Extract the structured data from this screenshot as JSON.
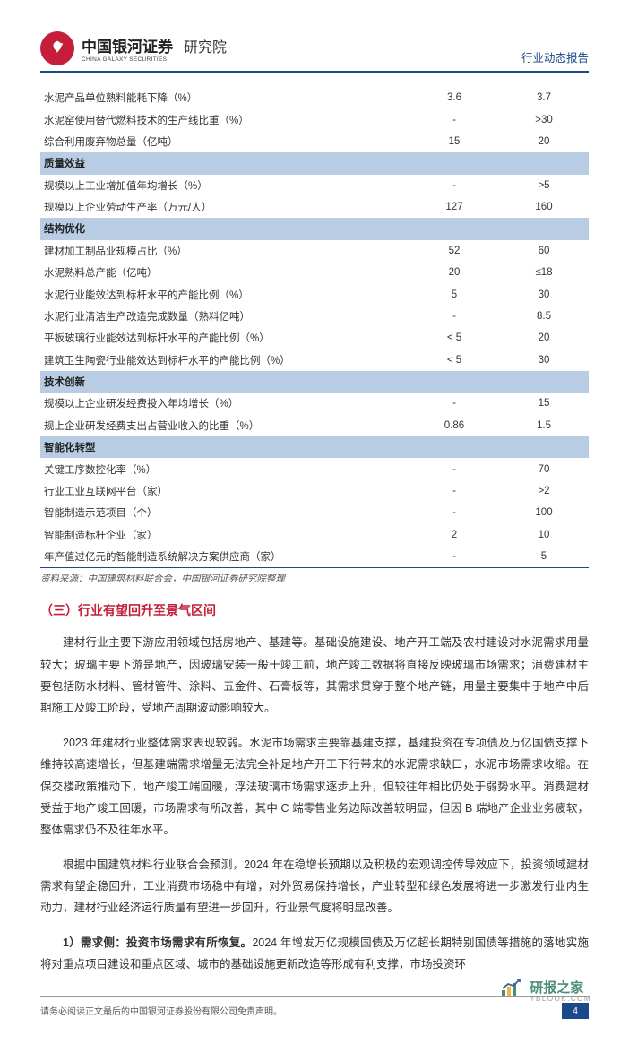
{
  "header": {
    "brand_cn": "中国银河证券",
    "brand_en": "CHINA GALAXY SECURITIES",
    "institute": "研究院",
    "report_type": "行业动态报告"
  },
  "table": {
    "sections": [
      {
        "rows": [
          {
            "label": "水泥产品单位熟料能耗下降（%）",
            "v1": "3.6",
            "v2": "3.7"
          },
          {
            "label": "水泥窑使用替代燃料技术的生产线比重（%）",
            "v1": "-",
            "v2": ">30"
          },
          {
            "label": "综合利用废弃物总量（亿吨）",
            "v1": "15",
            "v2": "20"
          }
        ]
      },
      {
        "title": "质量效益",
        "rows": [
          {
            "label": "规模以上工业增加值年均增长（%）",
            "v1": "-",
            "v2": ">5"
          },
          {
            "label": "规模以上企业劳动生产率（万元/人）",
            "v1": "127",
            "v2": "160"
          }
        ]
      },
      {
        "title": "结构优化",
        "rows": [
          {
            "label": "建材加工制品业规模占比（%）",
            "v1": "52",
            "v2": "60"
          },
          {
            "label": "水泥熟料总产能（亿吨）",
            "v1": "20",
            "v2": "≤18"
          },
          {
            "label": "水泥行业能效达到标杆水平的产能比例（%）",
            "v1": "5",
            "v2": "30"
          },
          {
            "label": "水泥行业清洁生产改造完成数量（熟料亿吨）",
            "v1": "-",
            "v2": "8.5"
          },
          {
            "label": "平板玻璃行业能效达到标杆水平的产能比例（%）",
            "v1": "< 5",
            "v2": "20"
          },
          {
            "label": "建筑卫生陶瓷行业能效达到标杆水平的产能比例（%）",
            "v1": "< 5",
            "v2": "30"
          }
        ]
      },
      {
        "title": "技术创新",
        "rows": [
          {
            "label": "规模以上企业研发经费投入年均增长（%）",
            "v1": "-",
            "v2": "15"
          },
          {
            "label": "规上企业研发经费支出占营业收入的比重（%）",
            "v1": "0.86",
            "v2": "1.5"
          }
        ]
      },
      {
        "title": "智能化转型",
        "rows": [
          {
            "label": "关键工序数控化率（%）",
            "v1": "-",
            "v2": "70"
          },
          {
            "label": "行业工业互联网平台（家）",
            "v1": "-",
            "v2": ">2"
          },
          {
            "label": "智能制造示范项目（个）",
            "v1": "-",
            "v2": "100"
          },
          {
            "label": "智能制造标杆企业（家）",
            "v1": "2",
            "v2": "10"
          },
          {
            "label": "年产值过亿元的智能制造系统解决方案供应商（家）",
            "v1": "-",
            "v2": "5"
          }
        ]
      }
    ]
  },
  "source": "资料来源：中国建筑材料联合会，中国银河证券研究院整理",
  "heading": "（三）行业有望回升至景气区间",
  "p1": "建材行业主要下游应用领域包括房地产、基建等。基础设施建设、地产开工端及农村建设对水泥需求用量较大；玻璃主要下游是地产，因玻璃安装一般于竣工前，地产竣工数据将直接反映玻璃市场需求；消费建材主要包括防水材料、管材管件、涂料、五金件、石膏板等，其需求贯穿于整个地产链，用量主要集中于地产中后期施工及竣工阶段，受地产周期波动影响较大。",
  "p2": "2023 年建材行业整体需求表现较弱。水泥市场需求主要靠基建支撑，基建投资在专项债及万亿国债支撑下维持较高速增长，但基建端需求增量无法完全补足地产开工下行带来的水泥需求缺口，水泥市场需求收缩。在保交楼政策推动下，地产竣工端回暖，浮法玻璃市场需求逐步上升，但较往年相比仍处于弱势水平。消费建材受益于地产竣工回暖，市场需求有所改善，其中 C 端零售业务边际改善较明显，但因 B 端地产企业业务疲软，整体需求仍不及往年水平。",
  "p3": "根据中国建筑材料行业联合会预测，2024 年在稳增长预期以及积极的宏观调控传导效应下，投资领域建材需求有望企稳回升，工业消费市场稳中有增，对外贸易保持增长，产业转型和绿色发展将进一步激发行业内生动力，建材行业经济运行质量有望进一步回升，行业景气度将明显改善。",
  "p4_lead": "1）需求侧：投资市场需求有所恢复。",
  "p4_rest": "2024 年增发万亿规模国债及万亿超长期特别国债等措施的落地实施将对重点项目建设和重点区域、城市的基础设施更新改造等形成有利支撑，市场投资环",
  "footer": {
    "disclaimer": "请务必阅读正文最后的中国银河证券股份有限公司免责声明。",
    "page": "4"
  },
  "wm": {
    "brand": "研报之家",
    "sub": "YBLOOK.COM"
  }
}
